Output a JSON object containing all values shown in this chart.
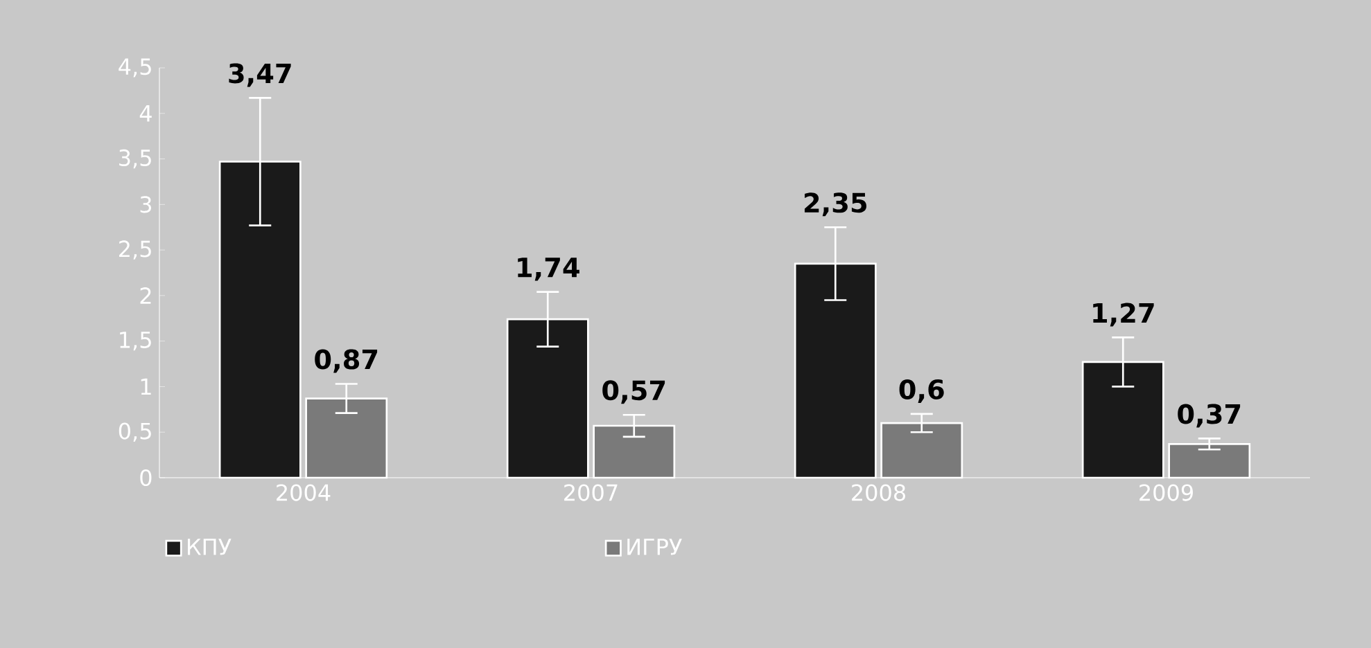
{
  "chart_data": {
    "type": "bar",
    "categories": [
      "2004",
      "2007",
      "2008",
      "2009"
    ],
    "series": [
      {
        "name": "КПУ",
        "color": "#1a1a1a",
        "values": [
          3.47,
          1.74,
          2.35,
          1.27
        ],
        "errors": [
          0.7,
          0.3,
          0.4,
          0.27
        ],
        "value_labels": [
          "3,47",
          "1,74",
          "2,35",
          "1,27"
        ]
      },
      {
        "name": "ИГРУ",
        "color": "#7a7a7a",
        "values": [
          0.87,
          0.57,
          0.6,
          0.37
        ],
        "errors": [
          0.16,
          0.12,
          0.1,
          0.06
        ],
        "value_labels": [
          "0,87",
          "0,57",
          "0,6",
          "0,37"
        ]
      }
    ],
    "ylim": [
      0,
      4.5
    ],
    "yticks": [
      0,
      {
        "value": 0.5,
        "label": "0,5"
      },
      1,
      {
        "value": 1.5,
        "label": "1,5"
      },
      2,
      {
        "value": 2.5,
        "label": "2,5"
      },
      3,
      {
        "value": 3.5,
        "label": "3,5"
      },
      4,
      {
        "value": 4.5,
        "label": "4,5"
      }
    ],
    "grid": false,
    "legend": "bottom left"
  }
}
